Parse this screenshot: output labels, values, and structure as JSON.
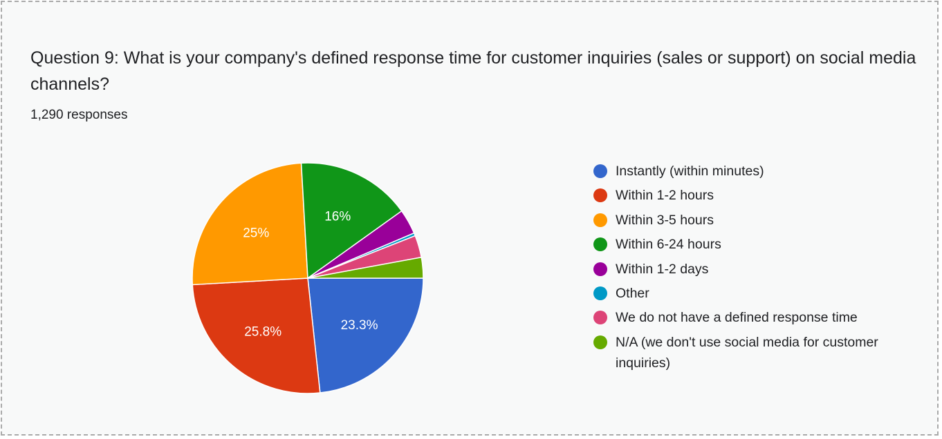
{
  "header": {
    "title": "Question 9: What is your company's defined response time for customer inquiries (sales or support) on social media channels?",
    "responses": "1,290 responses"
  },
  "chart_data": {
    "type": "pie",
    "legend_position": "right",
    "categories": [
      "Instantly (within minutes)",
      "Within 1-2 hours",
      "Within 3-5 hours",
      "Within 6-24 hours",
      "Within 1-2 days",
      "Other",
      "We do not have a defined response time",
      "N/A (we don't use social media for customer inquiries)"
    ],
    "values": [
      23.3,
      25.8,
      25,
      16,
      3.5,
      0.4,
      3.1,
      2.9
    ],
    "data_labels": [
      "23.3%",
      "25.8%",
      "25%",
      "16%",
      "",
      "",
      "",
      ""
    ],
    "colors": [
      "#3366cc",
      "#dc3912",
      "#ff9900",
      "#109618",
      "#990099",
      "#0099c6",
      "#dd4477",
      "#66aa00"
    ]
  }
}
